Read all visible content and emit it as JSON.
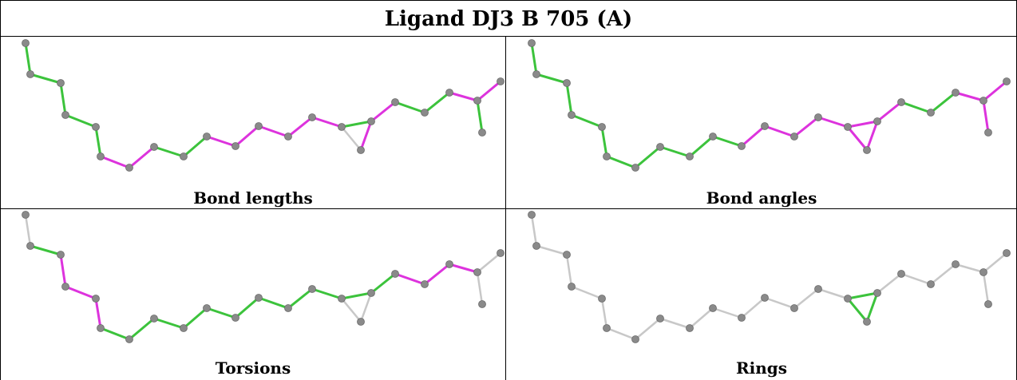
{
  "title": "Ligand DJ3 B 705 (A)",
  "panels": [
    {
      "caption": "Bond lengths"
    },
    {
      "caption": "Bond angles"
    },
    {
      "caption": "Torsions"
    },
    {
      "caption": "Rings"
    }
  ],
  "colors": {
    "green": "#3cc33c",
    "magenta": "#dd33dd",
    "gray": "#c8c8c8",
    "atom": "#8a8a8a"
  },
  "molecule": {
    "bonds": [
      [
        0,
        1
      ],
      [
        1,
        2
      ],
      [
        2,
        3
      ],
      [
        3,
        4
      ],
      [
        4,
        5
      ],
      [
        5,
        6
      ],
      [
        6,
        7
      ],
      [
        7,
        8
      ],
      [
        8,
        9
      ],
      [
        9,
        10
      ],
      [
        10,
        11
      ],
      [
        11,
        12
      ],
      [
        12,
        13
      ],
      [
        13,
        14
      ],
      [
        14,
        15
      ],
      [
        15,
        16
      ],
      [
        16,
        17
      ],
      [
        16,
        18
      ],
      [
        17,
        18
      ],
      [
        17,
        19
      ],
      [
        19,
        20
      ],
      [
        20,
        21
      ],
      [
        21,
        22
      ],
      [
        22,
        23
      ],
      [
        22,
        24
      ]
    ],
    "bond_colors": [
      [
        "green",
        "green",
        "green",
        "green",
        "green",
        "magenta",
        "magenta",
        "green",
        "green",
        "magenta",
        "magenta",
        "magenta",
        "magenta",
        "magenta",
        "magenta",
        "green",
        "gray",
        "green",
        "magenta",
        "magenta",
        "green",
        "green",
        "magenta",
        "magenta",
        "green"
      ],
      [
        "green",
        "green",
        "green",
        "green",
        "green",
        "green",
        "green",
        "green",
        "green",
        "green",
        "magenta",
        "magenta",
        "magenta",
        "magenta",
        "magenta",
        "magenta",
        "magenta",
        "magenta",
        "magenta",
        "magenta",
        "green",
        "green",
        "magenta",
        "magenta",
        "magenta"
      ],
      [
        "gray",
        "green",
        "magenta",
        "magenta",
        "magenta",
        "green",
        "green",
        "green",
        "green",
        "green",
        "green",
        "green",
        "green",
        "green",
        "green",
        "green",
        "gray",
        "gray",
        "gray",
        "green",
        "magenta",
        "magenta",
        "magenta",
        "gray",
        "gray"
      ],
      [
        "gray",
        "gray",
        "gray",
        "gray",
        "gray",
        "gray",
        "gray",
        "gray",
        "gray",
        "gray",
        "gray",
        "gray",
        "gray",
        "gray",
        "gray",
        "gray",
        "green",
        "green",
        "green",
        "gray",
        "gray",
        "gray",
        "gray",
        "gray",
        "gray"
      ]
    ]
  }
}
